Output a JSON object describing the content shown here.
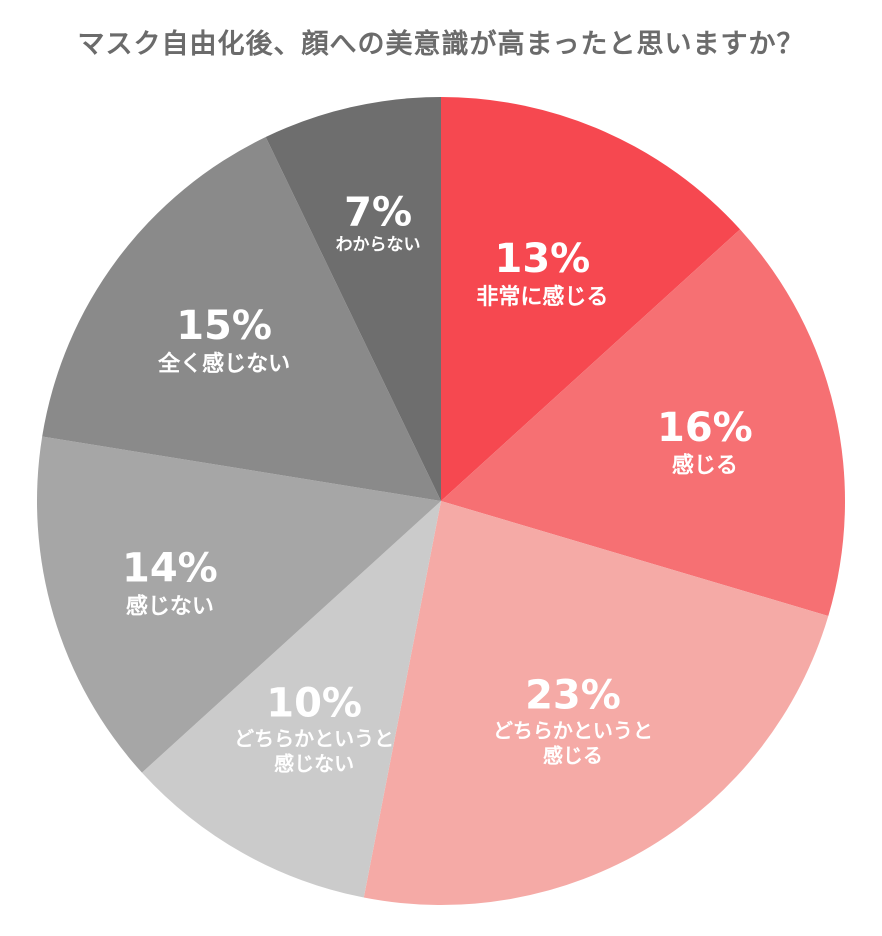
{
  "chart_data": {
    "type": "pie",
    "title": "マスク自由化後、顔への美意識が高まったと思いますか？",
    "slices": [
      {
        "label": "非常に感じる",
        "value": 13,
        "color": "#f64850"
      },
      {
        "label": "感じる",
        "value": 16,
        "color": "#f67073"
      },
      {
        "label": "どちらかというと感じる",
        "label_lines": [
          "どちらかというと",
          "感じる"
        ],
        "value": 23,
        "color": "#f5aaa6"
      },
      {
        "label": "どちらかというと感じない",
        "label_lines": [
          "どちらかというと",
          "感じない"
        ],
        "value": 10,
        "color": "#cbcbcb"
      },
      {
        "label": "感じない",
        "value": 14,
        "color": "#a6a6a6"
      },
      {
        "label": "全く感じない",
        "value": 15,
        "color": "#8a8a8a"
      },
      {
        "label": "わからない",
        "value": 7,
        "color": "#6e6e6e"
      }
    ],
    "start": "12 o'clock",
    "direction": "clockwise",
    "legend": "none"
  }
}
